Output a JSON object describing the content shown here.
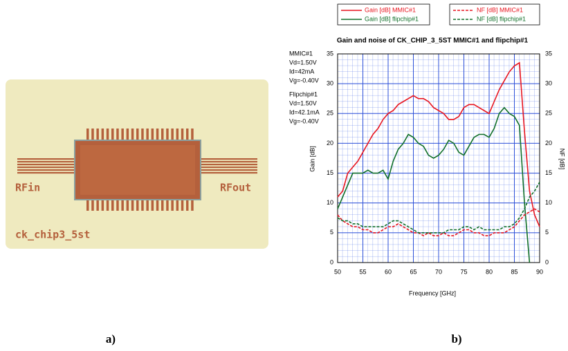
{
  "chart_data": {
    "type": "line",
    "title": "Gain and noise of CK_CHIP_3_5ST MMIC#1 and flipchip#1",
    "xlabel": "Frequency [GHz]",
    "ylabel": "Gain [dB]",
    "y2label": "NF [dB]",
    "annotations": [
      "MMIC#1",
      "Vd=1.50V",
      "Id=42mA",
      "Vg=-0.40V",
      "Flipchip#1",
      "Vd=1.50V",
      "Id=42.1mA",
      "Vg=-0.40V"
    ],
    "x": [
      50,
      51,
      52,
      53,
      54,
      55,
      56,
      57,
      58,
      59,
      60,
      61,
      62,
      63,
      64,
      65,
      66,
      67,
      68,
      69,
      70,
      71,
      72,
      73,
      74,
      75,
      76,
      77,
      78,
      79,
      80,
      81,
      82,
      83,
      84,
      85,
      86,
      87,
      88,
      89,
      90
    ],
    "xlim": [
      50,
      90
    ],
    "xticks": [
      50,
      55,
      60,
      65,
      70,
      75,
      80,
      85,
      90
    ],
    "ylim": [
      0,
      35
    ],
    "yticks": [
      0,
      5,
      10,
      15,
      20,
      25,
      30,
      35
    ],
    "y2lim": [
      0,
      35
    ],
    "y2ticks": [
      0,
      5,
      10,
      15,
      20,
      25,
      30,
      35
    ],
    "grid": true,
    "series": [
      {
        "name": "Gain [dB] MMIC#1",
        "color": "#e8141e",
        "dash": false,
        "values": [
          11,
          12,
          15,
          16,
          17,
          18.5,
          20,
          21.5,
          22.5,
          24,
          25,
          25.5,
          26.5,
          27,
          27.5,
          28,
          27.5,
          27.5,
          27,
          26,
          25.5,
          25,
          24,
          24,
          24.5,
          26,
          26.5,
          26.5,
          26,
          25.5,
          25,
          27,
          29,
          30.5,
          32,
          33,
          33.5,
          22,
          12,
          8,
          6
        ]
      },
      {
        "name": "Gain [dB] flipchip#1",
        "color": "#0f6e28",
        "dash": false,
        "values": [
          9,
          11,
          13,
          15,
          15,
          15,
          15.5,
          15,
          15,
          15.5,
          14,
          17,
          19,
          20,
          21.5,
          21,
          20,
          19.5,
          18,
          17.5,
          18,
          19,
          20.5,
          20,
          18.5,
          18,
          19.5,
          21,
          21.5,
          21.5,
          21,
          22.5,
          25,
          26,
          25,
          24.5,
          23,
          10,
          0,
          null,
          null
        ]
      },
      {
        "name": "NF [dB] MMIC#1",
        "color": "#e8141e",
        "dash": true,
        "axis": "y2",
        "values": [
          8,
          7,
          6.5,
          6,
          6,
          5.5,
          5.5,
          5,
          5,
          5.5,
          6,
          6,
          6.5,
          6,
          5.5,
          5,
          5,
          4.5,
          5,
          4.5,
          4.5,
          5,
          4.5,
          4.5,
          5,
          5.5,
          5.5,
          5,
          5,
          4.5,
          4.5,
          5,
          5,
          5,
          5.5,
          6,
          7,
          8,
          8.5,
          9,
          8.5
        ]
      },
      {
        "name": "NF [dB] flipchip#1",
        "color": "#0f6e28",
        "dash": true,
        "axis": "y2",
        "values": [
          7.5,
          7,
          7,
          6.5,
          6.5,
          6,
          6,
          6,
          6,
          6,
          6.5,
          7,
          7,
          6.5,
          6,
          5.5,
          5,
          5,
          5,
          5,
          5,
          5,
          5.5,
          5.5,
          5.5,
          6,
          6,
          5.5,
          6,
          5.5,
          5.5,
          5.5,
          5.5,
          6,
          6,
          6.5,
          7.5,
          9,
          11,
          12,
          13.5
        ]
      }
    ]
  },
  "photo": {
    "labels": [
      "RFin",
      "RFout",
      "ck_chip3_5st"
    ]
  },
  "captions": [
    "a)",
    "b)"
  ]
}
